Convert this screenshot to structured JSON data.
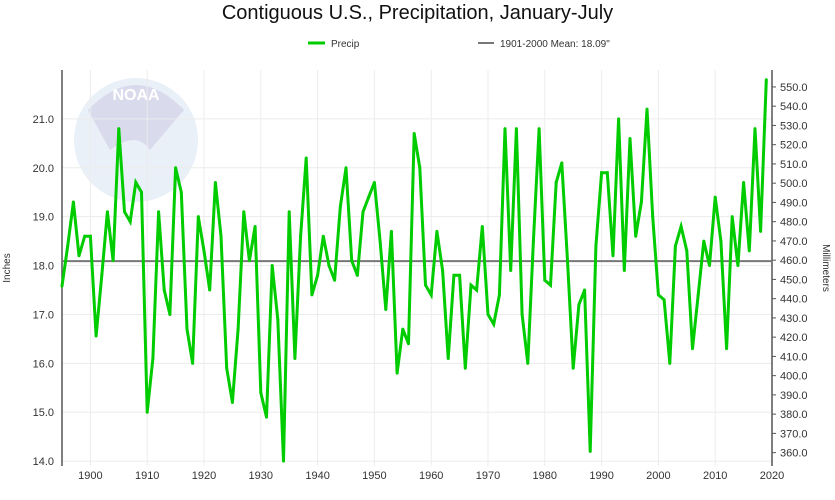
{
  "chart_data": {
    "type": "line",
    "title": "Contiguous U.S., Precipitation, January-July",
    "ylabel": "Inches",
    "y2label": "Millimeters",
    "xlim": [
      1895,
      2020
    ],
    "ylim": [
      13.9,
      22.0
    ],
    "grid": true,
    "legend_position": "top",
    "x_ticks": [
      1900,
      1910,
      1920,
      1930,
      1940,
      1950,
      1960,
      1970,
      1980,
      1990,
      2000,
      2010,
      2020
    ],
    "y_ticks": [
      "14.0",
      "15.0",
      "16.0",
      "17.0",
      "18.0",
      "19.0",
      "20.0",
      "21.0"
    ],
    "y2_ticks": [
      "360.0",
      "370.0",
      "380.0",
      "390.0",
      "400.0",
      "410.0",
      "420.0",
      "430.0",
      "440.0",
      "450.0",
      "460.0",
      "470.0",
      "480.0",
      "490.0",
      "500.0",
      "510.0",
      "520.0",
      "530.0",
      "540.0",
      "550.0"
    ],
    "series": [
      {
        "name": "Precip",
        "color": "#00cc00",
        "x_start": 1895,
        "values": [
          17.58,
          18.4,
          19.3,
          18.2,
          18.6,
          18.6,
          16.56,
          17.8,
          19.1,
          18.1,
          20.8,
          19.1,
          18.9,
          19.7,
          19.5,
          15.0,
          16.1,
          19.1,
          17.5,
          17.0,
          20.0,
          19.5,
          16.7,
          16.0,
          19.0,
          18.3,
          17.5,
          19.7,
          18.6,
          15.9,
          15.2,
          16.7,
          19.1,
          18.1,
          18.8,
          15.4,
          14.9,
          18.0,
          16.9,
          14.0,
          19.1,
          16.1,
          18.6,
          20.2,
          17.4,
          17.8,
          18.6,
          18.0,
          17.7,
          19.2,
          20.0,
          18.1,
          17.8,
          19.1,
          19.4,
          19.7,
          18.5,
          17.1,
          18.7,
          15.8,
          16.7,
          16.4,
          20.7,
          20.0,
          17.6,
          17.4,
          18.7,
          17.9,
          16.1,
          17.8,
          17.8,
          15.9,
          17.6,
          17.5,
          18.8,
          17.0,
          16.8,
          17.4,
          20.8,
          17.9,
          20.8,
          17.0,
          16.0,
          18.5,
          20.8,
          17.7,
          17.6,
          19.7,
          20.1,
          18.1,
          15.9,
          17.2,
          17.5,
          14.2,
          18.4,
          19.9,
          19.9,
          18.2,
          21.0,
          17.9,
          20.6,
          18.6,
          19.3,
          21.2,
          19.0,
          17.4,
          17.3,
          16.0,
          18.4,
          18.8,
          18.3,
          16.3,
          17.4,
          18.5,
          18.0,
          19.4,
          18.5,
          16.3,
          19.0,
          18.0,
          19.7,
          18.3,
          20.8,
          18.7,
          21.8
        ]
      }
    ],
    "mean_line": {
      "name": "1901-2000 Mean: 18.09\"",
      "value": 18.09,
      "color": "#777777"
    },
    "watermark_logo_text": "NOAA"
  }
}
